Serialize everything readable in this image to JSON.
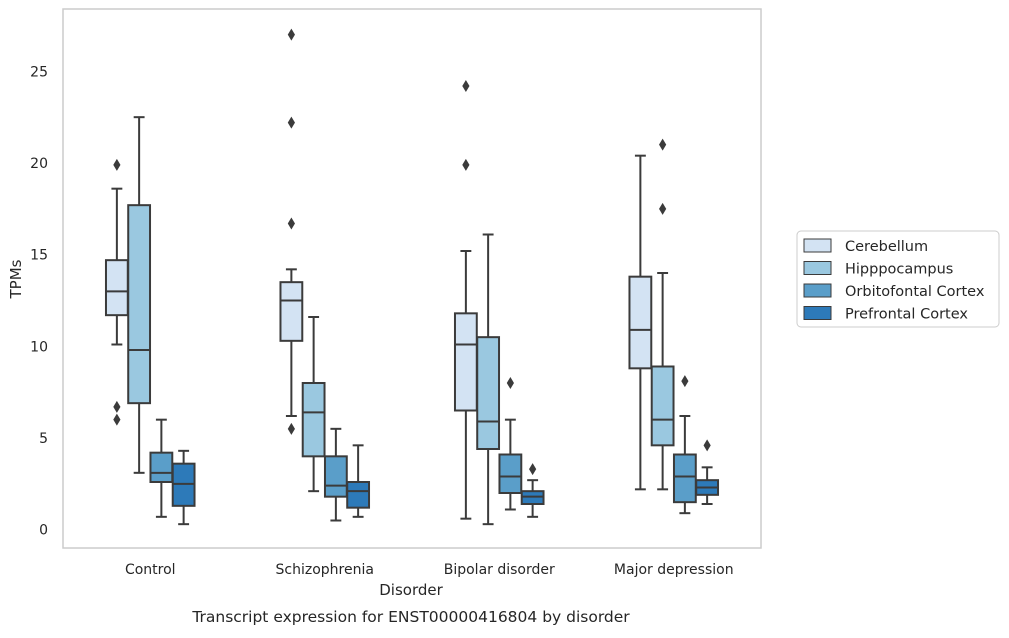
{
  "chart_data": {
    "type": "box",
    "caption": "Transcript expression for ENST00000416804 by disorder",
    "xlabel": "Disorder",
    "ylabel": "TPMs",
    "categories": [
      "Control",
      "Schizophrenia",
      "Bipolar disorder",
      "Major depression"
    ],
    "ylim": [
      -1,
      28.4
    ],
    "yticks": [
      0,
      5,
      10,
      15,
      20,
      25
    ],
    "grid": true,
    "legend_position": "right-outside",
    "series": [
      {
        "name": "Cerebellum",
        "color": "#d3e3f3",
        "boxes": [
          {
            "whislo": 10.1,
            "q1": 11.7,
            "med": 13.0,
            "q3": 14.7,
            "whishi": 18.6,
            "fliers": [
              19.9,
              6.7,
              6.0
            ]
          },
          {
            "whislo": 6.2,
            "q1": 10.3,
            "med": 12.5,
            "q3": 13.5,
            "whishi": 14.2,
            "fliers": [
              27.0,
              22.2,
              16.7,
              5.5
            ]
          },
          {
            "whislo": 0.6,
            "q1": 6.5,
            "med": 10.1,
            "q3": 11.8,
            "whishi": 15.2,
            "fliers": [
              24.2,
              19.9
            ]
          },
          {
            "whislo": 2.2,
            "q1": 8.8,
            "med": 10.9,
            "q3": 13.8,
            "whishi": 20.4,
            "fliers": []
          }
        ]
      },
      {
        "name": "Hipppocampus",
        "color": "#9ac8e0",
        "boxes": [
          {
            "whislo": 3.1,
            "q1": 6.9,
            "med": 9.8,
            "q3": 17.7,
            "whishi": 22.5,
            "fliers": []
          },
          {
            "whislo": 2.1,
            "q1": 4.0,
            "med": 6.4,
            "q3": 8.0,
            "whishi": 11.6,
            "fliers": []
          },
          {
            "whislo": 0.3,
            "q1": 4.4,
            "med": 5.9,
            "q3": 10.5,
            "whishi": 16.1,
            "fliers": []
          },
          {
            "whislo": 2.2,
            "q1": 4.6,
            "med": 6.0,
            "q3": 8.9,
            "whishi": 14.0,
            "fliers": [
              21.0,
              17.5
            ]
          }
        ]
      },
      {
        "name": "Orbitofontal Cortex",
        "color": "#5a9ec9",
        "boxes": [
          {
            "whislo": 0.7,
            "q1": 2.6,
            "med": 3.1,
            "q3": 4.2,
            "whishi": 6.0,
            "fliers": []
          },
          {
            "whislo": 0.5,
            "q1": 1.8,
            "med": 2.4,
            "q3": 4.0,
            "whishi": 5.5,
            "fliers": []
          },
          {
            "whislo": 1.1,
            "q1": 2.0,
            "med": 2.9,
            "q3": 4.1,
            "whishi": 6.0,
            "fliers": [
              8.0
            ]
          },
          {
            "whislo": 0.9,
            "q1": 1.5,
            "med": 2.9,
            "q3": 4.1,
            "whishi": 6.2,
            "fliers": [
              8.1
            ]
          }
        ]
      },
      {
        "name": "Prefrontal Cortex",
        "color": "#2d7ab9",
        "boxes": [
          {
            "whislo": 0.3,
            "q1": 1.3,
            "med": 2.5,
            "q3": 3.6,
            "whishi": 4.3,
            "fliers": []
          },
          {
            "whislo": 0.7,
            "q1": 1.2,
            "med": 2.1,
            "q3": 2.6,
            "whishi": 4.6,
            "fliers": []
          },
          {
            "whislo": 0.7,
            "q1": 1.4,
            "med": 1.8,
            "q3": 2.1,
            "whishi": 2.7,
            "fliers": [
              3.3
            ]
          },
          {
            "whislo": 1.4,
            "q1": 1.9,
            "med": 2.3,
            "q3": 2.7,
            "whishi": 3.4,
            "fliers": [
              4.6
            ]
          }
        ]
      }
    ]
  }
}
